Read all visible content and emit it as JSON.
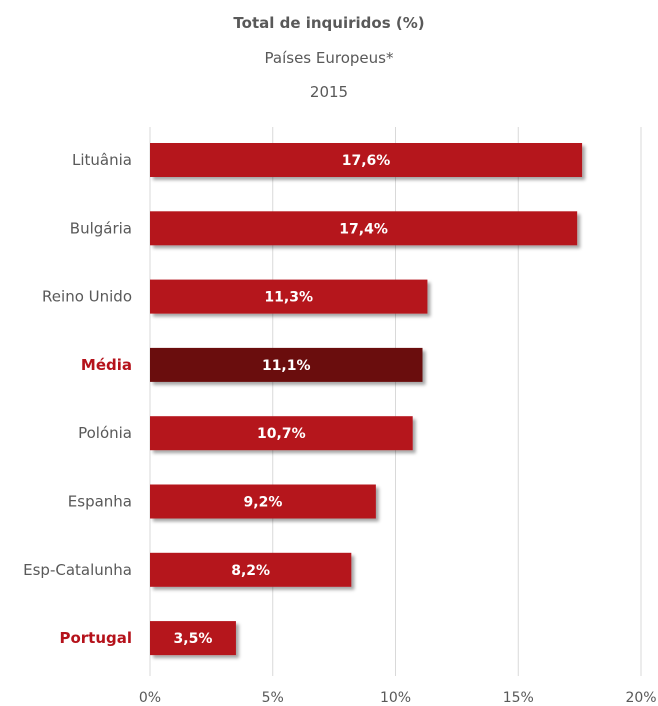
{
  "chart_data": {
    "type": "bar",
    "orientation": "horizontal",
    "title": "Total de inquiridos (%)",
    "subtitle": "Países Europeus*",
    "year": "2015",
    "categories": [
      "Lituânia",
      "Bulgária",
      "Reino Unido",
      "Média",
      "Polónia",
      "Espanha",
      "Esp-Catalunha",
      "Portugal"
    ],
    "values": [
      17.6,
      17.4,
      11.3,
      11.1,
      10.7,
      9.2,
      8.2,
      3.5
    ],
    "value_labels": [
      "17,6%",
      "17,4%",
      "11,3%",
      "11,1%",
      "10,7%",
      "9,2%",
      "8,2%",
      "3,5%"
    ],
    "highlighted_categories": [
      "Média",
      "Portugal"
    ],
    "xlim": [
      0,
      20
    ],
    "x_ticks": [
      0,
      5,
      10,
      15,
      20
    ],
    "x_tick_labels": [
      "0%",
      "5%",
      "10%",
      "15%",
      "20%"
    ],
    "grid": true,
    "colors": {
      "bar": "#b5121b",
      "average_bar": "#6b0a10",
      "highlight_label": "#b5121b",
      "label": "#595959",
      "grid": "#d9d9d9",
      "value_text": "#ffffff"
    }
  }
}
